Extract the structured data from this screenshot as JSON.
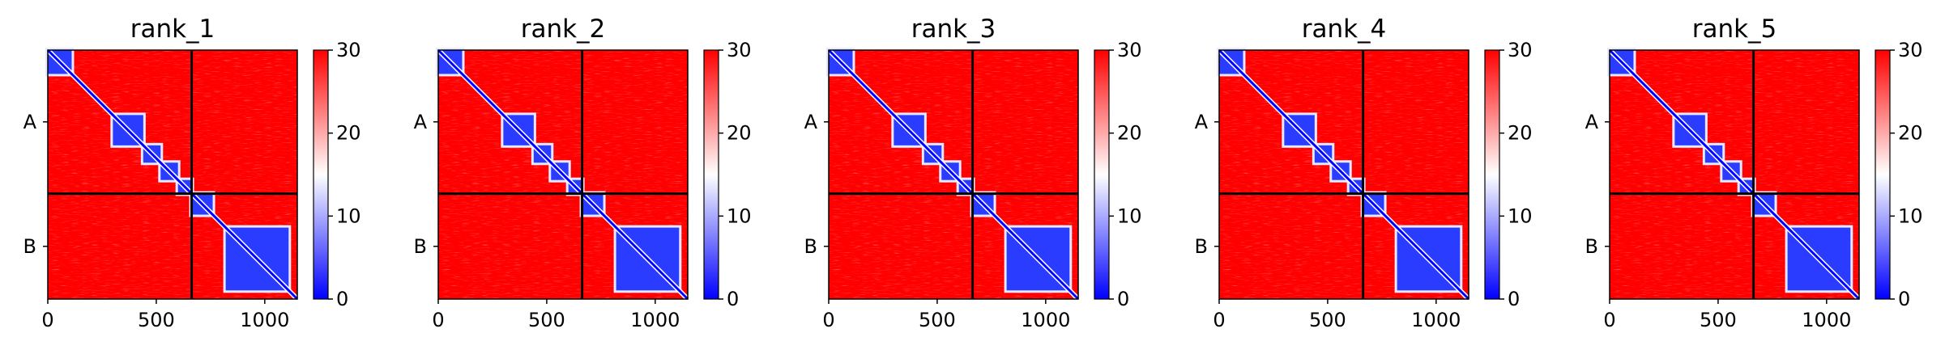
{
  "chart_data": [
    {
      "type": "heatmap",
      "title": "rank_1",
      "x_ticks": [
        "0",
        "500",
        "1000"
      ],
      "x_tick_values": [
        0,
        500,
        1000
      ],
      "x_range": [
        0,
        1150
      ],
      "y_ticks": [
        "A",
        "B"
      ],
      "chains": [
        {
          "name": "A",
          "start": 0,
          "end": 663
        },
        {
          "name": "B",
          "start": 663,
          "end": 1150
        }
      ],
      "colorbar": {
        "min": 0,
        "max": 30,
        "ticks": [
          "0",
          "10",
          "20",
          "30"
        ],
        "tick_values": [
          0,
          10,
          20,
          30
        ]
      },
      "colormap": [
        "#0000ff",
        "#ffffff",
        "#ff0000"
      ]
    },
    {
      "type": "heatmap",
      "title": "rank_2",
      "x_ticks": [
        "0",
        "500",
        "1000"
      ],
      "x_tick_values": [
        0,
        500,
        1000
      ],
      "x_range": [
        0,
        1150
      ],
      "y_ticks": [
        "A",
        "B"
      ],
      "chains": [
        {
          "name": "A",
          "start": 0,
          "end": 663
        },
        {
          "name": "B",
          "start": 663,
          "end": 1150
        }
      ],
      "colorbar": {
        "min": 0,
        "max": 30,
        "ticks": [
          "0",
          "10",
          "20",
          "30"
        ],
        "tick_values": [
          0,
          10,
          20,
          30
        ]
      },
      "colormap": [
        "#0000ff",
        "#ffffff",
        "#ff0000"
      ]
    },
    {
      "type": "heatmap",
      "title": "rank_3",
      "x_ticks": [
        "0",
        "500",
        "1000"
      ],
      "x_tick_values": [
        0,
        500,
        1000
      ],
      "x_range": [
        0,
        1150
      ],
      "y_ticks": [
        "A",
        "B"
      ],
      "chains": [
        {
          "name": "A",
          "start": 0,
          "end": 663
        },
        {
          "name": "B",
          "start": 663,
          "end": 1150
        }
      ],
      "colorbar": {
        "min": 0,
        "max": 30,
        "ticks": [
          "0",
          "10",
          "20",
          "30"
        ],
        "tick_values": [
          0,
          10,
          20,
          30
        ]
      },
      "colormap": [
        "#0000ff",
        "#ffffff",
        "#ff0000"
      ]
    },
    {
      "type": "heatmap",
      "title": "rank_4",
      "x_ticks": [
        "0",
        "500",
        "1000"
      ],
      "x_tick_values": [
        0,
        500,
        1000
      ],
      "x_range": [
        0,
        1150
      ],
      "y_ticks": [
        "A",
        "B"
      ],
      "chains": [
        {
          "name": "A",
          "start": 0,
          "end": 663
        },
        {
          "name": "B",
          "start": 663,
          "end": 1150
        }
      ],
      "colorbar": {
        "min": 0,
        "max": 30,
        "ticks": [
          "0",
          "10",
          "20",
          "30"
        ],
        "tick_values": [
          0,
          10,
          20,
          30
        ]
      },
      "colormap": [
        "#0000ff",
        "#ffffff",
        "#ff0000"
      ]
    },
    {
      "type": "heatmap",
      "title": "rank_5",
      "x_ticks": [
        "0",
        "500",
        "1000"
      ],
      "x_tick_values": [
        0,
        500,
        1000
      ],
      "x_range": [
        0,
        1150
      ],
      "y_ticks": [
        "A",
        "B"
      ],
      "chains": [
        {
          "name": "A",
          "start": 0,
          "end": 663
        },
        {
          "name": "B",
          "start": 663,
          "end": 1150
        }
      ],
      "colorbar": {
        "min": 0,
        "max": 30,
        "ticks": [
          "0",
          "10",
          "20",
          "30"
        ],
        "tick_values": [
          0,
          10,
          20,
          30
        ]
      },
      "colormap": [
        "#0000ff",
        "#ffffff",
        "#ff0000"
      ]
    }
  ]
}
